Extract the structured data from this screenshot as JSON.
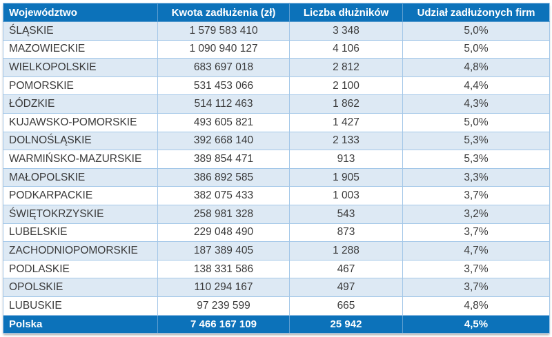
{
  "chart_data": {
    "type": "table",
    "columns": [
      {
        "label": "Województwo"
      },
      {
        "label": "Kwota zadłużenia (zł)"
      },
      {
        "label": "Liczba dłużników"
      },
      {
        "label": "Udział zadłużonych firm"
      }
    ],
    "rows": [
      [
        "ŚLĄSKIE",
        "1 579 583 410",
        "3 348",
        "5,0%"
      ],
      [
        "MAZOWIECKIE",
        "1 090 940 127",
        "4 106",
        "5,0%"
      ],
      [
        "WIELKOPOLSKIE",
        "683 697 018",
        "2 812",
        "4,8%"
      ],
      [
        "POMORSKIE",
        "531 453 066",
        "2 100",
        "4,4%"
      ],
      [
        "ŁÓDZKIE",
        "514 112 463",
        "1 862",
        "4,3%"
      ],
      [
        "KUJAWSKO-POMORSKIE",
        "493 605 821",
        "1 427",
        "5,0%"
      ],
      [
        "DOLNOŚLĄSKIE",
        "392 668 140",
        "2 133",
        "5,3%"
      ],
      [
        "WARMIŃSKO-MAZURSKIE",
        "389 854 471",
        "913",
        "5,3%"
      ],
      [
        "MAŁOPOLSKIE",
        "386 892 585",
        "1 905",
        "3,3%"
      ],
      [
        "PODKARPACKIE",
        "382 075 433",
        "1 003",
        "3,7%"
      ],
      [
        "ŚWIĘTOKRZYSKIE",
        "258 981 328",
        "543",
        "3,2%"
      ],
      [
        "LUBELSKIE",
        "229 048 490",
        "873",
        "3,7%"
      ],
      [
        "ZACHODNIOPOMORSKIE",
        "187 389 405",
        "1 288",
        "4,7%"
      ],
      [
        "PODLASKIE",
        "138 331 586",
        "467",
        "3,7%"
      ],
      [
        "OPOLSKIE",
        "110 294 167",
        "497",
        "3,7%"
      ],
      [
        "LUBUSKIE",
        "97 239 599",
        "665",
        "4,8%"
      ]
    ],
    "footer": [
      "Polska",
      "7 466 167 109",
      "25 942",
      "4,5%"
    ],
    "layout_hints": {
      "zebra_striping": true,
      "first_data_row_shaded": true,
      "numeric_columns_centered": true
    }
  },
  "colors": {
    "header_bg": "#0c72ba",
    "header_text": "#ffffff",
    "row_alt_bg": "#dde9f4",
    "row_bg": "#ffffff",
    "grid_line": "#a3c7e8",
    "text": "#3a3a3a"
  }
}
